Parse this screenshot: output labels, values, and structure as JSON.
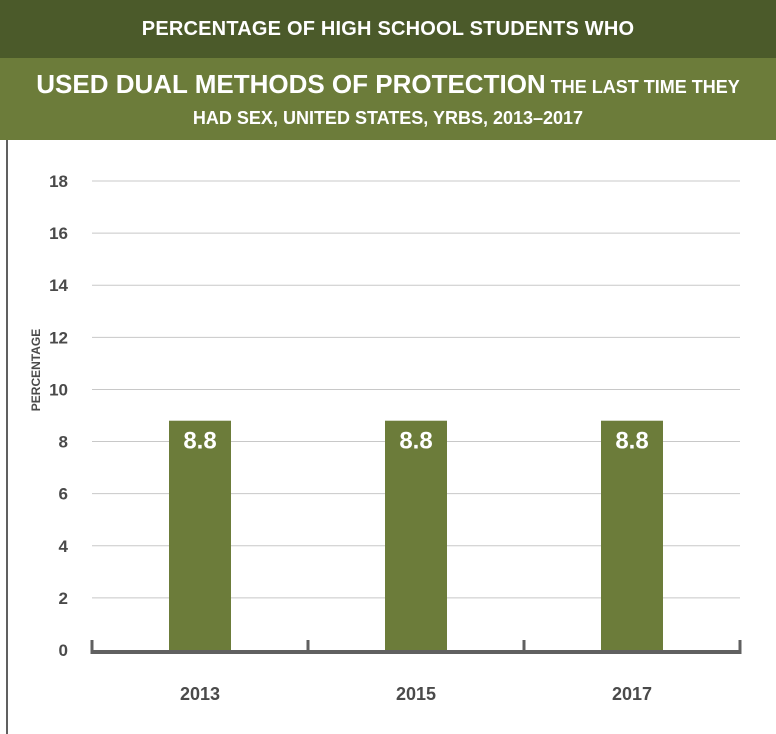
{
  "header": {
    "kicker": "PERCENTAGE OF HIGH SCHOOL STUDENTS WHO",
    "title_emphasis": "USED DUAL METHODS OF PROTECTION",
    "title_rest": "THE LAST TIME THEY",
    "title_line2": "HAD SEX, UNITED STATES, YRBS, 2013–2017"
  },
  "colors": {
    "header_dark": "#4b5a2a",
    "header_light": "#6c7c3a",
    "bar": "#6c7c3a",
    "grid": "#c8c8c8",
    "axis": "#606060",
    "text": "#4a4a4a"
  },
  "chart_data": {
    "type": "bar",
    "categories": [
      "2013",
      "2015",
      "2017"
    ],
    "values": [
      8.8,
      8.8,
      8.8
    ],
    "value_labels": [
      "8.8",
      "8.8",
      "8.8"
    ],
    "ylabel": "PERCENTAGE",
    "xlabel": "",
    "ylim": [
      0,
      18
    ],
    "yticks": [
      0,
      2,
      4,
      6,
      8,
      10,
      12,
      14,
      16,
      18
    ],
    "grid": true,
    "legend": "none"
  }
}
